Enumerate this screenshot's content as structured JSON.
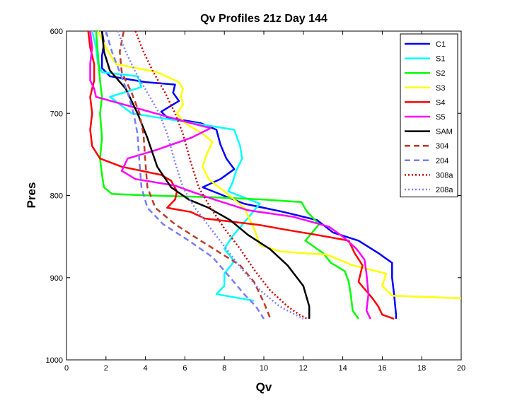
{
  "chart_data": {
    "type": "line",
    "title": "Qv Profiles 21z Day 144",
    "xlabel": "Qv",
    "ylabel": "Pres",
    "xlim": [
      0,
      20
    ],
    "ylim": [
      600,
      1000
    ],
    "y_reversed": true,
    "x_ticks": [
      0,
      2,
      4,
      6,
      8,
      10,
      12,
      14,
      16,
      18,
      20
    ],
    "y_ticks": [
      600,
      700,
      800,
      900,
      1000
    ],
    "x_tick_labels": [
      "0",
      "2",
      "4",
      "6",
      "8",
      "10",
      "12",
      "14",
      "16",
      "18",
      "20"
    ],
    "y_tick_labels": [
      "600",
      "700",
      "800",
      "900",
      "1000"
    ],
    "grid": false,
    "legend_position": "top-right",
    "series": [
      {
        "name": "C1",
        "color": "#0000ff",
        "style": "solid",
        "points": [
          [
            1.8,
            600
          ],
          [
            1.9,
            615
          ],
          [
            1.8,
            630
          ],
          [
            1.8,
            645
          ],
          [
            2.2,
            655
          ],
          [
            4.0,
            662
          ],
          [
            5.5,
            665
          ],
          [
            5.4,
            675
          ],
          [
            5.7,
            685
          ],
          [
            4.8,
            698
          ],
          [
            5.1,
            705
          ],
          [
            6.8,
            712
          ],
          [
            7.6,
            720
          ],
          [
            7.8,
            738
          ],
          [
            8.1,
            755
          ],
          [
            8.5,
            768
          ],
          [
            7.8,
            780
          ],
          [
            6.9,
            790
          ],
          [
            9.0,
            810
          ],
          [
            11.0,
            820
          ],
          [
            12.7,
            830
          ],
          [
            13.5,
            845
          ],
          [
            14.8,
            855
          ],
          [
            15.8,
            870
          ],
          [
            16.5,
            882
          ],
          [
            16.5,
            900
          ],
          [
            16.6,
            920
          ],
          [
            16.7,
            945
          ],
          [
            16.7,
            950
          ]
        ]
      },
      {
        "name": "S1",
        "color": "#00ffff",
        "style": "solid",
        "points": [
          [
            1.3,
            600
          ],
          [
            1.5,
            620
          ],
          [
            1.6,
            640
          ],
          [
            1.8,
            650
          ],
          [
            3.6,
            655
          ],
          [
            3.8,
            668
          ],
          [
            2.2,
            680
          ],
          [
            3.3,
            700
          ],
          [
            5.4,
            708
          ],
          [
            8.5,
            720
          ],
          [
            8.8,
            740
          ],
          [
            8.9,
            755
          ],
          [
            8.6,
            770
          ],
          [
            8.4,
            785
          ],
          [
            8.2,
            795
          ],
          [
            9.8,
            810
          ],
          [
            9.1,
            830
          ],
          [
            8.4,
            850
          ],
          [
            8.0,
            865
          ],
          [
            8.5,
            880
          ],
          [
            8.0,
            895
          ],
          [
            8.0,
            910
          ],
          [
            7.6,
            920
          ],
          [
            9.5,
            928
          ]
        ]
      },
      {
        "name": "S2",
        "color": "#00ff00",
        "style": "solid",
        "points": [
          [
            1.5,
            600
          ],
          [
            1.6,
            630
          ],
          [
            1.7,
            660
          ],
          [
            1.8,
            680
          ],
          [
            1.7,
            700
          ],
          [
            1.8,
            730
          ],
          [
            1.7,
            755
          ],
          [
            1.8,
            775
          ],
          [
            1.9,
            790
          ],
          [
            2.3,
            798
          ],
          [
            4.2,
            800
          ],
          [
            7.2,
            802
          ],
          [
            10.0,
            805
          ],
          [
            11.9,
            808
          ],
          [
            12.2,
            820
          ],
          [
            12.8,
            835
          ],
          [
            12.1,
            855
          ],
          [
            13.0,
            870
          ],
          [
            13.4,
            882
          ],
          [
            14.1,
            892
          ],
          [
            14.3,
            905
          ],
          [
            14.4,
            920
          ],
          [
            14.5,
            940
          ],
          [
            14.8,
            950
          ]
        ]
      },
      {
        "name": "S3",
        "color": "#ffff00",
        "style": "solid",
        "points": [
          [
            1.6,
            600
          ],
          [
            2.0,
            620
          ],
          [
            2.5,
            640
          ],
          [
            4.6,
            650
          ],
          [
            5.7,
            662
          ],
          [
            5.9,
            670
          ],
          [
            5.8,
            680
          ],
          [
            5.9,
            690
          ],
          [
            5.6,
            700
          ],
          [
            6.0,
            712
          ],
          [
            6.9,
            725
          ],
          [
            7.4,
            735
          ],
          [
            7.1,
            750
          ],
          [
            6.9,
            765
          ],
          [
            7.2,
            780
          ],
          [
            8.0,
            795
          ],
          [
            9.0,
            815
          ],
          [
            9.5,
            840
          ],
          [
            9.8,
            860
          ],
          [
            10.8,
            868
          ],
          [
            13.2,
            872
          ],
          [
            14.5,
            885
          ],
          [
            16.2,
            895
          ],
          [
            16.0,
            910
          ],
          [
            16.5,
            922
          ],
          [
            20.0,
            925
          ]
        ]
      },
      {
        "name": "S4",
        "color": "#ff0000",
        "style": "solid",
        "points": [
          [
            1.1,
            600
          ],
          [
            1.2,
            620
          ],
          [
            1.4,
            640
          ],
          [
            1.4,
            660
          ],
          [
            1.2,
            680
          ],
          [
            1.3,
            700
          ],
          [
            1.2,
            720
          ],
          [
            1.3,
            740
          ],
          [
            1.7,
            755
          ],
          [
            2.8,
            765
          ],
          [
            4.8,
            775
          ],
          [
            5.3,
            782
          ],
          [
            5.6,
            795
          ],
          [
            5.5,
            805
          ],
          [
            5.1,
            815
          ],
          [
            6.3,
            820
          ],
          [
            7.0,
            828
          ],
          [
            9.8,
            836
          ],
          [
            11.2,
            842
          ],
          [
            12.7,
            848
          ],
          [
            14.3,
            855
          ],
          [
            14.6,
            870
          ],
          [
            15.0,
            885
          ],
          [
            14.8,
            905
          ],
          [
            15.5,
            925
          ],
          [
            15.8,
            935
          ],
          [
            16.0,
            945
          ],
          [
            16.6,
            950
          ]
        ]
      },
      {
        "name": "S5",
        "color": "#ff00ff",
        "style": "solid",
        "points": [
          [
            1.2,
            600
          ],
          [
            1.3,
            620
          ],
          [
            1.2,
            640
          ],
          [
            1.2,
            660
          ],
          [
            1.4,
            670
          ],
          [
            1.5,
            680
          ],
          [
            3.0,
            690
          ],
          [
            4.5,
            700
          ],
          [
            6.0,
            710
          ],
          [
            7.3,
            718
          ],
          [
            6.3,
            730
          ],
          [
            4.5,
            745
          ],
          [
            3.1,
            755
          ],
          [
            2.8,
            770
          ],
          [
            3.5,
            780
          ],
          [
            5.5,
            788
          ],
          [
            6.3,
            795
          ],
          [
            7.5,
            805
          ],
          [
            9.2,
            818
          ],
          [
            11.5,
            826
          ],
          [
            13.3,
            838
          ],
          [
            14.0,
            850
          ],
          [
            14.7,
            865
          ],
          [
            15.1,
            878
          ],
          [
            15.2,
            895
          ],
          [
            15.3,
            920
          ],
          [
            15.2,
            940
          ],
          [
            15.4,
            950
          ]
        ]
      },
      {
        "name": "SAM",
        "color": "#000000",
        "style": "solid",
        "points": [
          [
            1.8,
            600
          ],
          [
            1.9,
            625
          ],
          [
            2.2,
            648
          ],
          [
            3.0,
            670
          ],
          [
            3.6,
            700
          ],
          [
            4.1,
            730
          ],
          [
            4.6,
            765
          ],
          [
            5.3,
            790
          ],
          [
            6.2,
            805
          ],
          [
            7.2,
            815
          ],
          [
            8.3,
            830
          ],
          [
            9.2,
            848
          ],
          [
            10.3,
            865
          ],
          [
            11.2,
            885
          ],
          [
            12.0,
            910
          ],
          [
            12.3,
            935
          ],
          [
            12.3,
            950
          ]
        ]
      },
      {
        "name": "304",
        "color": "#c0392b",
        "style": "dashed",
        "points": [
          [
            2.9,
            600
          ],
          [
            2.7,
            625
          ],
          [
            2.8,
            650
          ],
          [
            3.3,
            675
          ],
          [
            3.7,
            700
          ],
          [
            3.9,
            725
          ],
          [
            4.0,
            760
          ],
          [
            4.1,
            790
          ],
          [
            4.5,
            815
          ],
          [
            5.5,
            835
          ],
          [
            6.8,
            855
          ],
          [
            7.8,
            870
          ],
          [
            8.8,
            885
          ],
          [
            9.5,
            905
          ],
          [
            10.0,
            930
          ],
          [
            10.3,
            948
          ]
        ]
      },
      {
        "name": "204",
        "color": "#7b7bff",
        "style": "dashed",
        "points": [
          [
            2.0,
            600
          ],
          [
            2.3,
            625
          ],
          [
            2.7,
            650
          ],
          [
            3.1,
            675
          ],
          [
            3.4,
            700
          ],
          [
            3.6,
            725
          ],
          [
            3.7,
            760
          ],
          [
            3.8,
            790
          ],
          [
            4.1,
            815
          ],
          [
            4.9,
            835
          ],
          [
            6.2,
            855
          ],
          [
            7.4,
            875
          ],
          [
            8.3,
            900
          ],
          [
            9.0,
            920
          ],
          [
            9.6,
            935
          ],
          [
            10.0,
            950
          ]
        ]
      },
      {
        "name": "308a",
        "color": "#cc0000",
        "style": "dotted",
        "points": [
          [
            3.5,
            600
          ],
          [
            3.9,
            625
          ],
          [
            4.4,
            650
          ],
          [
            5.0,
            675
          ],
          [
            5.5,
            700
          ],
          [
            5.9,
            725
          ],
          [
            6.3,
            760
          ],
          [
            6.7,
            790
          ],
          [
            7.3,
            815
          ],
          [
            8.0,
            840
          ],
          [
            8.8,
            865
          ],
          [
            9.5,
            890
          ],
          [
            10.3,
            915
          ],
          [
            11.2,
            935
          ],
          [
            11.8,
            945
          ],
          [
            12.2,
            950
          ]
        ]
      },
      {
        "name": "208a",
        "color": "#8080ff",
        "style": "dotted",
        "points": [
          [
            2.6,
            600
          ],
          [
            3.0,
            625
          ],
          [
            3.5,
            650
          ],
          [
            4.1,
            675
          ],
          [
            4.7,
            700
          ],
          [
            5.1,
            725
          ],
          [
            5.5,
            760
          ],
          [
            5.9,
            790
          ],
          [
            6.5,
            815
          ],
          [
            7.3,
            840
          ],
          [
            8.1,
            865
          ],
          [
            8.9,
            890
          ],
          [
            9.8,
            915
          ],
          [
            10.8,
            935
          ],
          [
            11.6,
            945
          ],
          [
            12.0,
            950
          ]
        ]
      }
    ]
  }
}
